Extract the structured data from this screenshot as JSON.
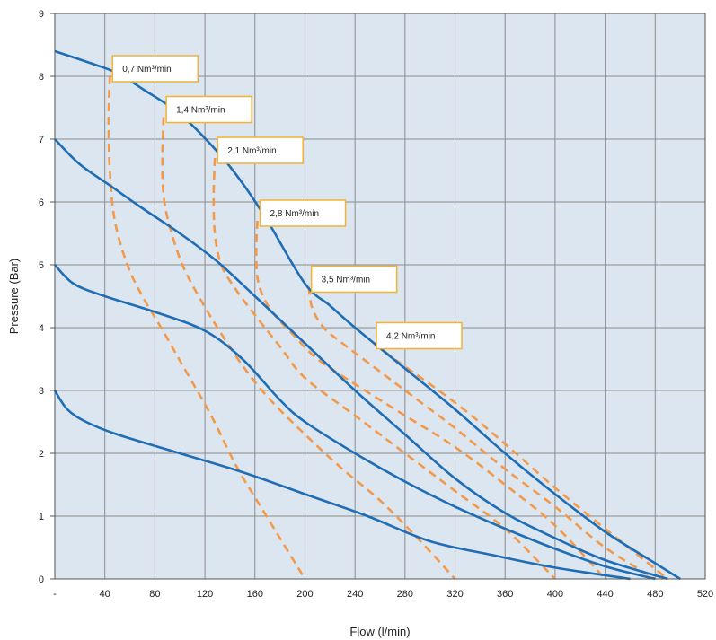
{
  "chart_data": {
    "type": "line",
    "xlabel": "Flow (l/min)",
    "ylabel": "Pressure (Bar)",
    "xlim": [
      0,
      520
    ],
    "ylim": [
      0,
      9
    ],
    "x_ticks": [
      {
        "value": 0,
        "label": "-"
      },
      {
        "value": 40,
        "label": "40"
      },
      {
        "value": 80,
        "label": "80"
      },
      {
        "value": 120,
        "label": "120"
      },
      {
        "value": 160,
        "label": "160"
      },
      {
        "value": 200,
        "label": "200"
      },
      {
        "value": 240,
        "label": "240"
      },
      {
        "value": 280,
        "label": "280"
      },
      {
        "value": 320,
        "label": "320"
      },
      {
        "value": 360,
        "label": "360"
      },
      {
        "value": 400,
        "label": "400"
      },
      {
        "value": 440,
        "label": "440"
      },
      {
        "value": 480,
        "label": "480"
      },
      {
        "value": 520,
        "label": "520"
      }
    ],
    "y_ticks": [
      0,
      1,
      2,
      3,
      4,
      5,
      6,
      7,
      8,
      9
    ],
    "grid": true,
    "colors": {
      "plot_background": "#dce6f0",
      "grid": "#8c8c8c",
      "pressure_curve": "#1f6db5",
      "air_consumption_curve": "#f2994a",
      "annotation_border": "#f2b233",
      "annotation_fill": "#ffffff"
    },
    "series": [
      {
        "kind": "pressure",
        "style": "solid",
        "points": [
          [
            0,
            3.0
          ],
          [
            10,
            2.7
          ],
          [
            25,
            2.5
          ],
          [
            50,
            2.3
          ],
          [
            100,
            2.0
          ],
          [
            150,
            1.7
          ],
          [
            200,
            1.35
          ],
          [
            250,
            1.0
          ],
          [
            300,
            0.6
          ],
          [
            350,
            0.38
          ],
          [
            400,
            0.18
          ],
          [
            460,
            0
          ]
        ]
      },
      {
        "kind": "pressure",
        "style": "solid",
        "points": [
          [
            0,
            5.0
          ],
          [
            15,
            4.7
          ],
          [
            40,
            4.5
          ],
          [
            80,
            4.25
          ],
          [
            120,
            3.95
          ],
          [
            150,
            3.5
          ],
          [
            180,
            2.85
          ],
          [
            200,
            2.5
          ],
          [
            240,
            2.0
          ],
          [
            280,
            1.55
          ],
          [
            320,
            1.15
          ],
          [
            360,
            0.8
          ],
          [
            400,
            0.48
          ],
          [
            440,
            0.2
          ],
          [
            480,
            0
          ]
        ]
      },
      {
        "kind": "pressure",
        "style": "solid",
        "points": [
          [
            0,
            7.0
          ],
          [
            20,
            6.6
          ],
          [
            45,
            6.25
          ],
          [
            70,
            5.9
          ],
          [
            100,
            5.5
          ],
          [
            130,
            5.05
          ],
          [
            160,
            4.5
          ],
          [
            200,
            3.75
          ],
          [
            240,
            3.0
          ],
          [
            280,
            2.3
          ],
          [
            320,
            1.6
          ],
          [
            360,
            1.05
          ],
          [
            400,
            0.65
          ],
          [
            440,
            0.3
          ],
          [
            490,
            0
          ]
        ]
      },
      {
        "kind": "pressure",
        "style": "solid",
        "points": [
          [
            0,
            8.4
          ],
          [
            30,
            8.2
          ],
          [
            50,
            8.05
          ],
          [
            70,
            7.8
          ],
          [
            100,
            7.4
          ],
          [
            130,
            6.8
          ],
          [
            150,
            6.3
          ],
          [
            170,
            5.7
          ],
          [
            200,
            4.7
          ],
          [
            220,
            4.35
          ],
          [
            240,
            4.0
          ],
          [
            280,
            3.35
          ],
          [
            320,
            2.7
          ],
          [
            360,
            2.0
          ],
          [
            400,
            1.35
          ],
          [
            440,
            0.75
          ],
          [
            480,
            0.25
          ],
          [
            500,
            0
          ]
        ]
      },
      {
        "kind": "air",
        "style": "dashed",
        "name": "0,7 Nm³/min",
        "points": [
          [
            44,
            8.0
          ],
          [
            43,
            7.3
          ],
          [
            44,
            6.5
          ],
          [
            48,
            5.7
          ],
          [
            58,
            5.0
          ],
          [
            70,
            4.5
          ],
          [
            85,
            4.0
          ],
          [
            105,
            3.3
          ],
          [
            125,
            2.6
          ],
          [
            145,
            1.8
          ],
          [
            160,
            1.3
          ],
          [
            180,
            0.65
          ],
          [
            200,
            0
          ]
        ]
      },
      {
        "kind": "air",
        "style": "dashed",
        "name": "1,4 Nm³/min",
        "points": [
          [
            87,
            7.35
          ],
          [
            86,
            6.7
          ],
          [
            87,
            6.1
          ],
          [
            92,
            5.6
          ],
          [
            102,
            5.0
          ],
          [
            115,
            4.5
          ],
          [
            130,
            4.0
          ],
          [
            150,
            3.4
          ],
          [
            170,
            2.9
          ],
          [
            200,
            2.3
          ],
          [
            230,
            1.75
          ],
          [
            260,
            1.25
          ],
          [
            290,
            0.65
          ],
          [
            320,
            0
          ]
        ]
      },
      {
        "kind": "air",
        "style": "dashed",
        "name": "2,1 Nm³/min",
        "points": [
          [
            128,
            6.7
          ],
          [
            127,
            6.1
          ],
          [
            128,
            5.5
          ],
          [
            133,
            5.0
          ],
          [
            145,
            4.6
          ],
          [
            160,
            4.2
          ],
          [
            180,
            3.7
          ],
          [
            200,
            3.2
          ],
          [
            240,
            2.6
          ],
          [
            280,
            2.0
          ],
          [
            320,
            1.4
          ],
          [
            360,
            0.8
          ],
          [
            400,
            0
          ]
        ]
      },
      {
        "kind": "air",
        "style": "dashed",
        "name": "2,8 Nm³/min",
        "points": [
          [
            162,
            5.7
          ],
          [
            161,
            5.15
          ],
          [
            163,
            4.7
          ],
          [
            172,
            4.3
          ],
          [
            190,
            3.9
          ],
          [
            210,
            3.5
          ],
          [
            240,
            3.1
          ],
          [
            280,
            2.6
          ],
          [
            320,
            2.1
          ],
          [
            360,
            1.5
          ],
          [
            400,
            0.85
          ],
          [
            440,
            0
          ]
        ]
      },
      {
        "kind": "air",
        "style": "dashed",
        "name": "3,5 Nm³/min",
        "points": [
          [
            203,
            4.65
          ],
          [
            206,
            4.3
          ],
          [
            215,
            4.0
          ],
          [
            230,
            3.75
          ],
          [
            260,
            3.3
          ],
          [
            290,
            2.85
          ],
          [
            320,
            2.4
          ],
          [
            360,
            1.75
          ],
          [
            400,
            1.15
          ],
          [
            440,
            0.5
          ],
          [
            480,
            0
          ]
        ]
      },
      {
        "kind": "air",
        "style": "dashed",
        "name": "4,2 Nm³/min",
        "points": [
          [
            255,
            3.75
          ],
          [
            275,
            3.45
          ],
          [
            300,
            3.1
          ],
          [
            330,
            2.65
          ],
          [
            360,
            2.15
          ],
          [
            400,
            1.45
          ],
          [
            440,
            0.8
          ],
          [
            490,
            0
          ]
        ]
      }
    ],
    "annotations": [
      {
        "label": "0,7 Nm³/min",
        "x": 44,
        "y": 8.0
      },
      {
        "label": "1,4 Nm³/min",
        "x": 87,
        "y": 7.35
      },
      {
        "label": "2,1 Nm³/min",
        "x": 128,
        "y": 6.7
      },
      {
        "label": "2,8 Nm³/min",
        "x": 162,
        "y": 5.7
      },
      {
        "label": "3,5 Nm³/min",
        "x": 203,
        "y": 4.65
      },
      {
        "label": "4,2 Nm³/min",
        "x": 255,
        "y": 3.75
      }
    ]
  }
}
